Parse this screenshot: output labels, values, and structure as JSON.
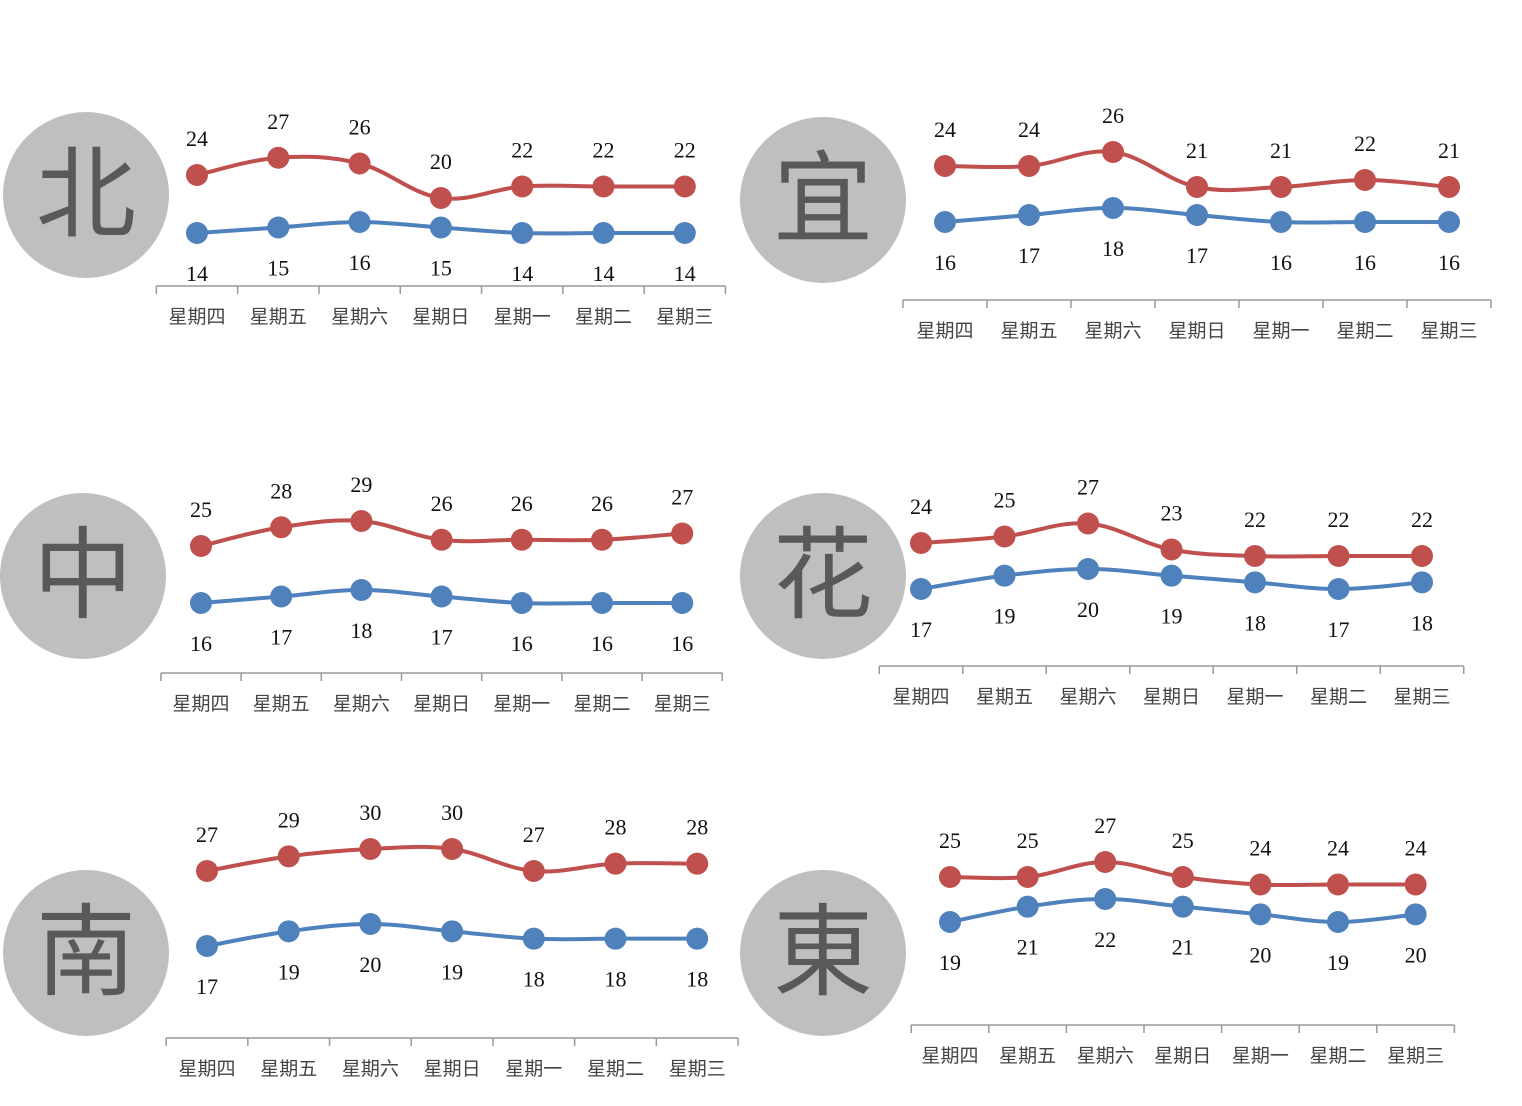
{
  "colors": {
    "high": "#c0504d",
    "low": "#4f81bd",
    "badge": "#bfbfbf",
    "badge_text": "#595959",
    "axis": "#999999"
  },
  "chart_data": [
    {
      "type": "line",
      "region": "北",
      "categories": [
        "星期四",
        "星期五",
        "星期六",
        "星期日",
        "星期一",
        "星期二",
        "星期三"
      ],
      "series": [
        {
          "values": [
            24,
            27,
            26,
            20,
            22,
            22,
            22
          ]
        },
        {
          "values": [
            14,
            15,
            16,
            15,
            14,
            14,
            14
          ]
        }
      ]
    },
    {
      "type": "line",
      "region": "宜",
      "categories": [
        "星期四",
        "星期五",
        "星期六",
        "星期日",
        "星期一",
        "星期二",
        "星期三"
      ],
      "series": [
        {
          "values": [
            24,
            24,
            26,
            21,
            21,
            22,
            21
          ]
        },
        {
          "values": [
            16,
            17,
            18,
            17,
            16,
            16,
            16
          ]
        }
      ]
    },
    {
      "type": "line",
      "region": "中",
      "categories": [
        "星期四",
        "星期五",
        "星期六",
        "星期日",
        "星期一",
        "星期二",
        "星期三"
      ],
      "series": [
        {
          "values": [
            25,
            28,
            29,
            26,
            26,
            26,
            27
          ]
        },
        {
          "values": [
            16,
            17,
            18,
            17,
            16,
            16,
            16
          ]
        }
      ]
    },
    {
      "type": "line",
      "region": "花",
      "categories": [
        "星期四",
        "星期五",
        "星期六",
        "星期日",
        "星期一",
        "星期二",
        "星期三"
      ],
      "series": [
        {
          "values": [
            24,
            25,
            27,
            23,
            22,
            22,
            22
          ]
        },
        {
          "values": [
            17,
            19,
            20,
            19,
            18,
            17,
            18
          ]
        }
      ]
    },
    {
      "type": "line",
      "region": "南",
      "categories": [
        "星期四",
        "星期五",
        "星期六",
        "星期日",
        "星期一",
        "星期二",
        "星期三"
      ],
      "series": [
        {
          "values": [
            27,
            29,
            30,
            30,
            27,
            28,
            28
          ]
        },
        {
          "values": [
            17,
            19,
            20,
            19,
            18,
            18,
            18
          ]
        }
      ]
    },
    {
      "type": "line",
      "region": "東",
      "categories": [
        "星期四",
        "星期五",
        "星期六",
        "星期日",
        "星期一",
        "星期二",
        "星期三"
      ],
      "series": [
        {
          "values": [
            25,
            25,
            27,
            25,
            24,
            24,
            24
          ]
        },
        {
          "values": [
            19,
            21,
            22,
            21,
            20,
            19,
            20
          ]
        }
      ]
    }
  ]
}
